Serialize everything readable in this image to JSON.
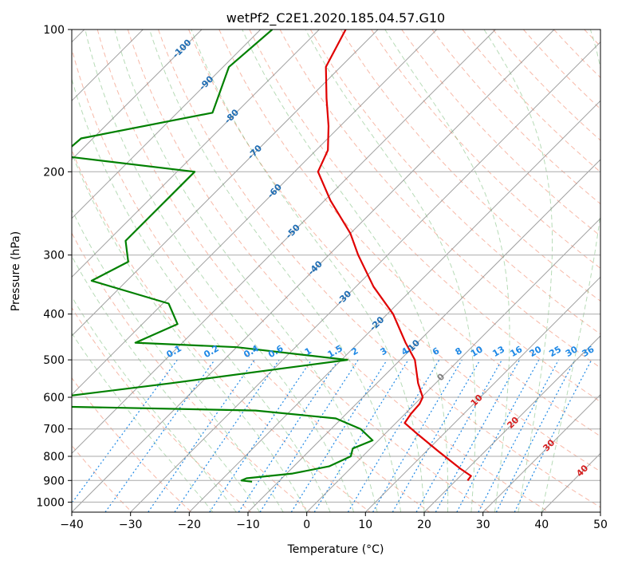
{
  "chart_data": {
    "type": "skew-t",
    "title": "wetPf2_C2E1.2020.185.04.57.G10",
    "xlabel": "Temperature (°C)",
    "ylabel": "Pressure (hPa)",
    "xlim": [
      -40,
      50
    ],
    "ylim": [
      1050,
      100
    ],
    "y_scale": "log",
    "grid": true,
    "x_ticks": [
      -40,
      -30,
      -20,
      -10,
      0,
      10,
      20,
      30,
      40,
      50
    ],
    "x_tick_labels": [
      "−40",
      "−30",
      "−20",
      "−10",
      "0",
      "10",
      "20",
      "30",
      "40",
      "50"
    ],
    "y_ticks": [
      100,
      200,
      300,
      400,
      500,
      600,
      700,
      800,
      900,
      1000
    ],
    "y_tick_labels": [
      "100",
      "200",
      "300",
      "400",
      "500",
      "600",
      "700",
      "800",
      "900",
      "1000"
    ],
    "series": [
      {
        "color": "#e00000",
        "points": [
          {
            "p": 100,
            "t": -75.5
          },
          {
            "p": 120,
            "t": -72.5
          },
          {
            "p": 140,
            "t": -67
          },
          {
            "p": 160,
            "t": -62
          },
          {
            "p": 180,
            "t": -58
          },
          {
            "p": 200,
            "t": -56
          },
          {
            "p": 230,
            "t": -49
          },
          {
            "p": 270,
            "t": -40
          },
          {
            "p": 300,
            "t": -35
          },
          {
            "p": 350,
            "t": -27
          },
          {
            "p": 400,
            "t": -19
          },
          {
            "p": 460,
            "t": -12
          },
          {
            "p": 500,
            "t": -7.5
          },
          {
            "p": 560,
            "t": -3
          },
          {
            "p": 600,
            "t": 0.2
          },
          {
            "p": 620,
            "t": 0.8
          },
          {
            "p": 650,
            "t": 1
          },
          {
            "p": 680,
            "t": 1.5
          },
          {
            "p": 720,
            "t": 5.8
          },
          {
            "p": 780,
            "t": 12
          },
          {
            "p": 850,
            "t": 18.8
          },
          {
            "p": 880,
            "t": 21.8
          },
          {
            "p": 900,
            "t": 22
          }
        ]
      },
      {
        "color": "#008000",
        "points": [
          {
            "p": 100,
            "t": -88
          },
          {
            "p": 120,
            "t": -89
          },
          {
            "p": 150,
            "t": -84
          },
          {
            "p": 170,
            "t": -102
          },
          {
            "p": 185,
            "t": -102.5
          },
          {
            "p": 200,
            "t": -77
          },
          {
            "p": 230,
            "t": -77
          },
          {
            "p": 280,
            "t": -77
          },
          {
            "p": 310,
            "t": -73
          },
          {
            "p": 340,
            "t": -76
          },
          {
            "p": 380,
            "t": -59
          },
          {
            "p": 420,
            "t": -54
          },
          {
            "p": 460,
            "t": -58
          },
          {
            "p": 470,
            "t": -40
          },
          {
            "p": 500,
            "t": -19
          },
          {
            "p": 520,
            "t": -28
          },
          {
            "p": 560,
            "t": -45
          },
          {
            "p": 600,
            "t": -62
          },
          {
            "p": 625,
            "t": -68
          },
          {
            "p": 640,
            "t": -26
          },
          {
            "p": 665,
            "t": -11
          },
          {
            "p": 700,
            "t": -5
          },
          {
            "p": 740,
            "t": -1
          },
          {
            "p": 770,
            "t": -3
          },
          {
            "p": 800,
            "t": -2
          },
          {
            "p": 840,
            "t": -4
          },
          {
            "p": 870,
            "t": -9
          },
          {
            "p": 890,
            "t": -16
          },
          {
            "p": 900,
            "t": -16.5
          },
          {
            "p": 905,
            "t": -14.5
          }
        ]
      }
    ],
    "dry_adiabat_labels": [
      "-100",
      "-90",
      "-80",
      "-70",
      "-60",
      "-50",
      "-40",
      "-30",
      "-20",
      "-10",
      "0",
      "10",
      "20",
      "30",
      "40"
    ],
    "mixing_ratio_labels": [
      "0.1",
      "0.2",
      "0.4",
      "0.6",
      "1",
      "1.5",
      "2",
      "3",
      "4",
      "6",
      "8",
      "10",
      "13",
      "16",
      "20",
      "25",
      "30",
      "36"
    ],
    "colors": {
      "temperature": "#e00000",
      "dewpoint": "#008000",
      "dry_adiabat": "#f08060",
      "moist_adiabat": "#60b060",
      "mixing_ratio": "#1e88e5",
      "isotherm": "#888888",
      "isobar": "#aaaaaa",
      "dry_label_cold": "#1f6db3",
      "dry_label_warm": "#d62020"
    }
  }
}
